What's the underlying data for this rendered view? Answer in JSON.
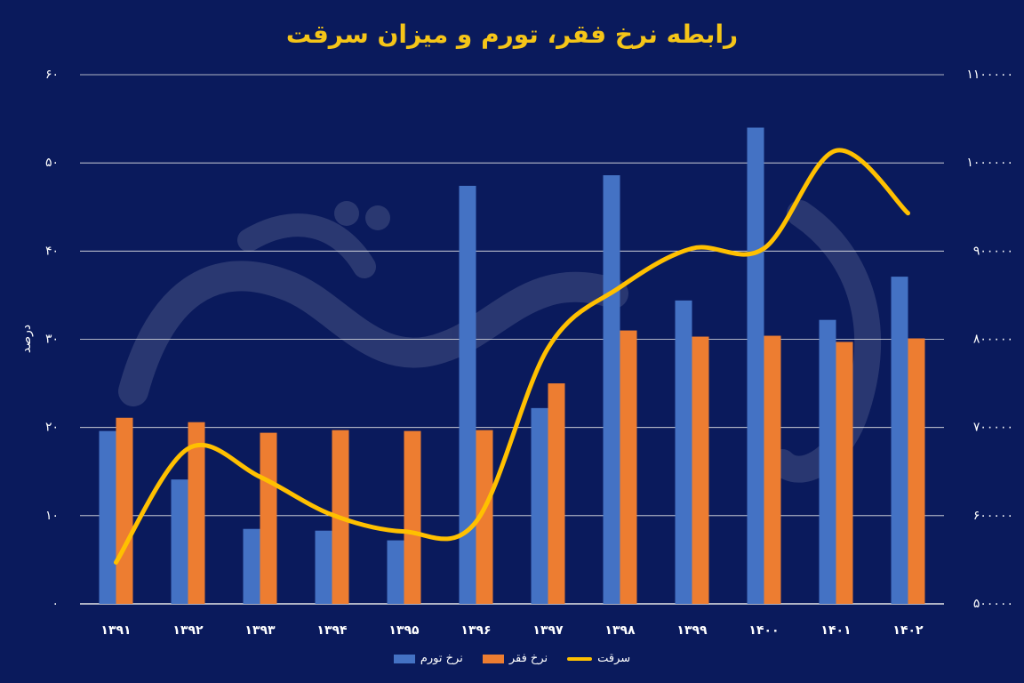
{
  "title": "رابطه نرخ فقر، تورم و میزان سرقت",
  "colors": {
    "background": "#0a1a5c",
    "title": "#f5c518",
    "inflation": "#4472c4",
    "poverty": "#ed7d31",
    "theft": "#ffc000",
    "grid": "#e8e8e8"
  },
  "chart_data": {
    "type": "bar",
    "categories": [
      "۱۳۹۱",
      "۱۳۹۲",
      "۱۳۹۳",
      "۱۳۹۴",
      "۱۳۹۵",
      "۱۳۹۶",
      "۱۳۹۷",
      "۱۳۹۸",
      "۱۳۹۹",
      "۱۴۰۰",
      "۱۴۰۱",
      "۱۴۰۲"
    ],
    "ylabel": "درصد",
    "ylim": [
      0,
      60
    ],
    "y2lim": [
      500000,
      1100000
    ],
    "y_ticks": [
      "۰",
      "۱۰",
      "۲۰",
      "۳۰",
      "۴۰",
      "۵۰",
      "۶۰"
    ],
    "y2_ticks": [
      "۵۰۰۰۰۰",
      "۶۰۰۰۰۰",
      "۷۰۰۰۰۰",
      "۸۰۰۰۰۰",
      "۹۰۰۰۰۰",
      "۱۰۰۰۰۰۰",
      "۱۱۰۰۰۰۰"
    ],
    "grid": true,
    "legend_position": "bottom",
    "series": [
      {
        "name": "نرخ تورم",
        "type": "bar",
        "axis": "left",
        "values": [
          19.6,
          14.1,
          8.5,
          8.3,
          7.2,
          47.4,
          22.2,
          48.6,
          34.4,
          54.0,
          32.2,
          37.1
        ]
      },
      {
        "name": "نرخ فقر",
        "type": "bar",
        "axis": "left",
        "values": [
          21.1,
          20.6,
          19.4,
          19.7,
          19.6,
          19.7,
          25.0,
          31.0,
          30.3,
          30.4,
          29.7,
          30.1
        ]
      },
      {
        "name": "سرقت",
        "type": "line",
        "axis": "right",
        "values": [
          547000,
          676000,
          644000,
          601000,
          582000,
          593000,
          790000,
          859000,
          903000,
          903000,
          1014000,
          943000
        ]
      }
    ]
  }
}
